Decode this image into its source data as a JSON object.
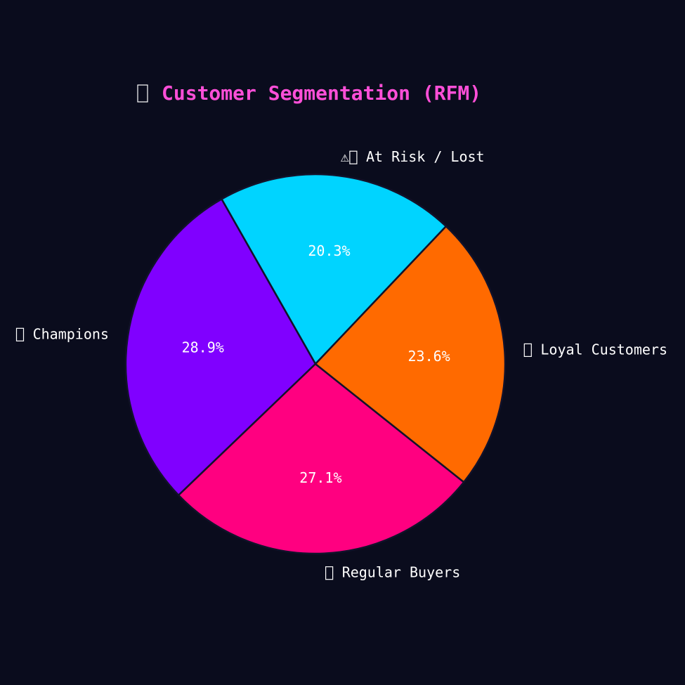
{
  "chart_data": {
    "type": "pie",
    "title": "Customer Segmentation (RFM)",
    "title_color": "#ff4fd8",
    "background": "#0a0c1d",
    "edge_color": "#12122a",
    "slices": [
      {
        "label": "At Risk / Lost",
        "value": 20.3,
        "pct_label": "20.3%",
        "color": "#00d4ff",
        "icon": "warning-icon"
      },
      {
        "label": "Champions",
        "value": 28.9,
        "pct_label": "28.9%",
        "color": "#8000ff",
        "icon": "emoji-glyph-icon"
      },
      {
        "label": "Regular Buyers",
        "value": 27.1,
        "pct_label": "27.1%",
        "color": "#ff0080",
        "icon": "emoji-glyph-icon"
      },
      {
        "label": "Loyal Customers",
        "value": 23.6,
        "pct_label": "23.6%",
        "color": "#ff6a00",
        "icon": "emoji-glyph-icon"
      }
    ],
    "start_angle_deg": 46.5,
    "direction": "counterclockwise",
    "warning_glyph": "⚠"
  }
}
